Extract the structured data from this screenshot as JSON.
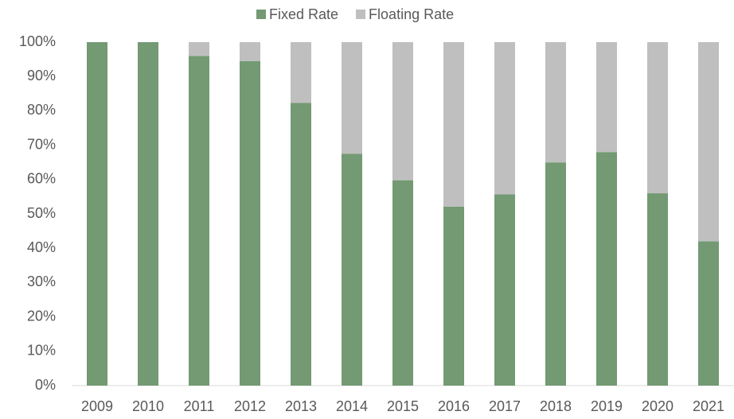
{
  "chart_data": {
    "type": "stacked-bar",
    "categories": [
      "2009",
      "2010",
      "2011",
      "2012",
      "2013",
      "2014",
      "2015",
      "2016",
      "2017",
      "2018",
      "2019",
      "2020",
      "2021"
    ],
    "series": [
      {
        "name": "Fixed Rate",
        "color": "#739a73",
        "values": [
          100,
          100,
          96,
          94.5,
          82.3,
          67.5,
          59.8,
          52.1,
          55.7,
          65,
          68,
          56,
          42
        ]
      },
      {
        "name": "Floating Rate",
        "color": "#bfbfbf",
        "values": [
          0,
          0,
          4,
          5.5,
          17.7,
          32.5,
          40.2,
          47.9,
          44.3,
          35,
          32,
          44,
          58
        ]
      }
    ],
    "ylim": [
      0,
      100
    ],
    "yticks": [
      {
        "value": 0,
        "label": "0%"
      },
      {
        "value": 10,
        "label": "10%"
      },
      {
        "value": 20,
        "label": "20%"
      },
      {
        "value": 30,
        "label": "30%"
      },
      {
        "value": 40,
        "label": "40%"
      },
      {
        "value": 50,
        "label": "50%"
      },
      {
        "value": 60,
        "label": "60%"
      },
      {
        "value": 70,
        "label": "70%"
      },
      {
        "value": 80,
        "label": "80%"
      },
      {
        "value": 90,
        "label": "90%"
      },
      {
        "value": 100,
        "label": "100%"
      }
    ],
    "legend": "top"
  }
}
